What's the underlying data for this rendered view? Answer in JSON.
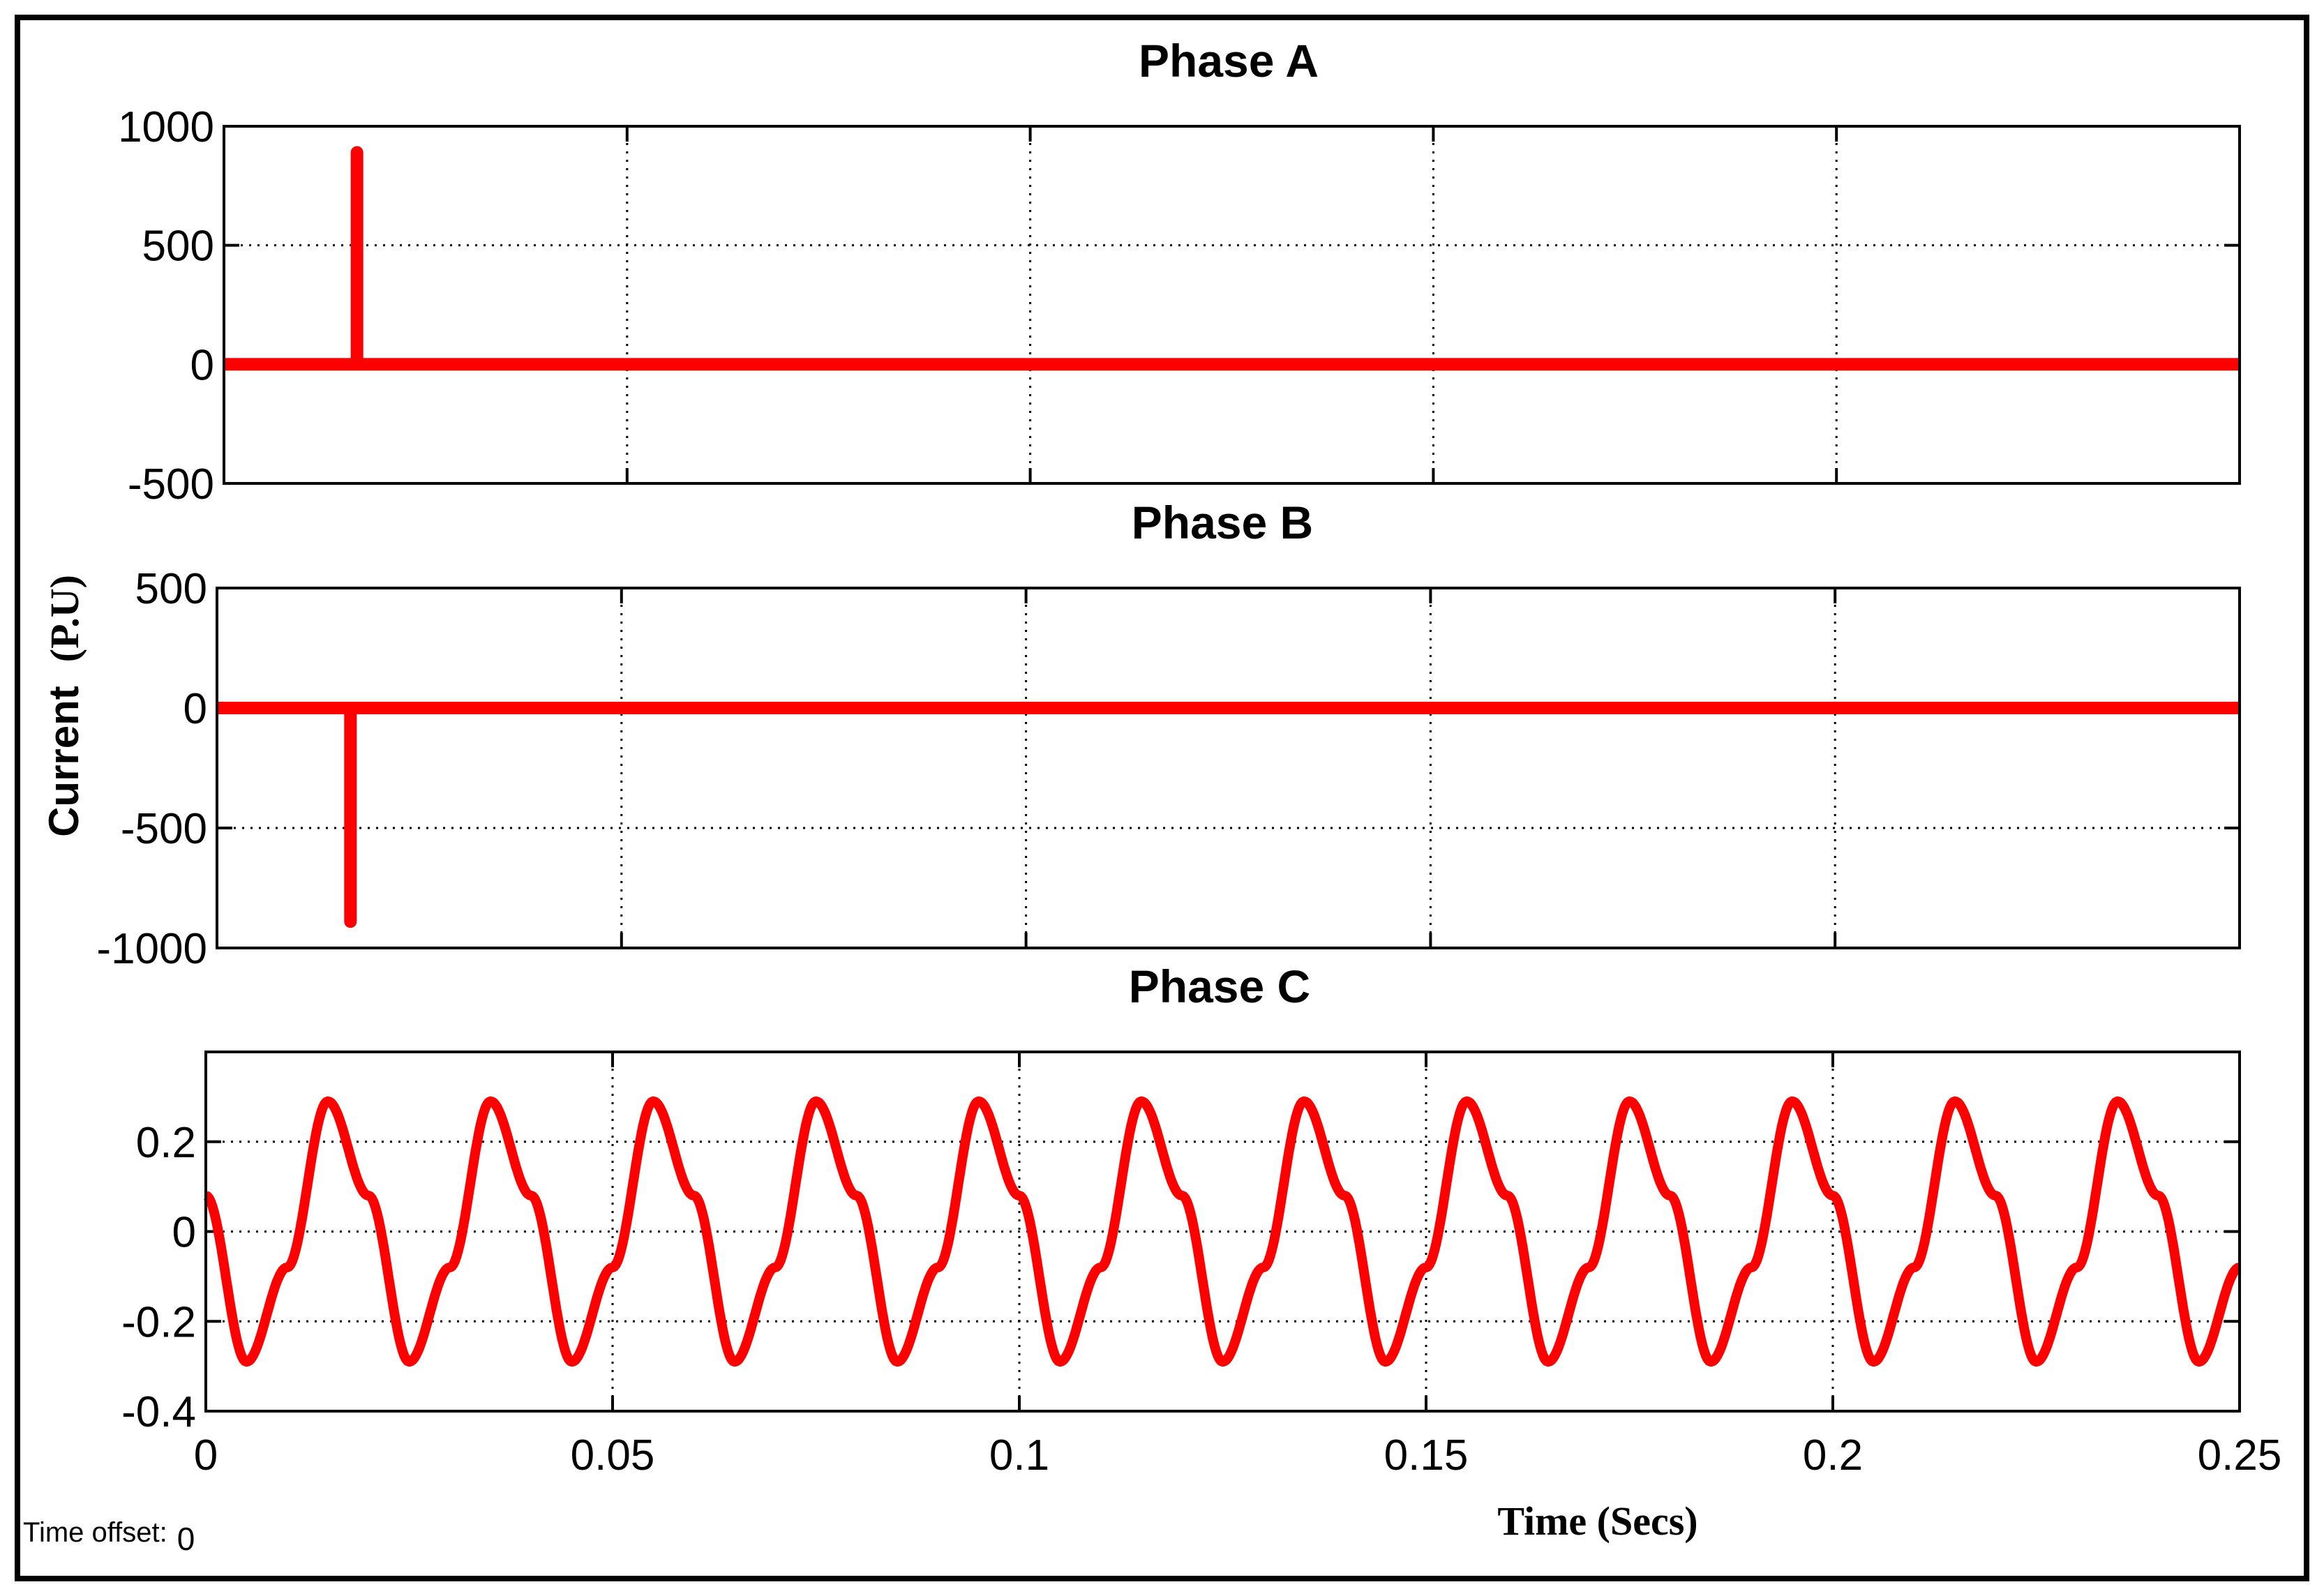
{
  "chart_data": [
    {
      "type": "line",
      "title": "Phase A",
      "ylim": [
        -500,
        1000
      ],
      "yticks": [
        -500,
        0,
        500,
        1000
      ],
      "ytick_labels": [
        "-500",
        "0",
        "500",
        "1000"
      ],
      "xlim": [
        0,
        0.25
      ],
      "xticks": [
        0,
        0.05,
        0.1,
        0.15,
        0.2,
        0.25
      ],
      "grid": true,
      "color": "#ff0000",
      "x": [
        0,
        0.0165,
        0.0165,
        0.0165,
        0.25
      ],
      "y": [
        0,
        0,
        890,
        0,
        0
      ]
    },
    {
      "type": "line",
      "title": "Phase B",
      "ylim": [
        -1000,
        500
      ],
      "yticks": [
        -1000,
        -500,
        0,
        500
      ],
      "ytick_labels": [
        "-1000",
        "-500",
        "0",
        "500"
      ],
      "xlim": [
        0,
        0.25
      ],
      "xticks": [
        0,
        0.05,
        0.1,
        0.15,
        0.2,
        0.25
      ],
      "grid": true,
      "color": "#ff0000",
      "x": [
        0,
        0.0165,
        0.0165,
        0.0165,
        0.25
      ],
      "y": [
        0,
        0,
        -890,
        0,
        0
      ]
    },
    {
      "type": "line",
      "title": "Phase C",
      "ylim": [
        -0.4,
        0.4
      ],
      "yticks": [
        -0.4,
        -0.2,
        0,
        0.2
      ],
      "ytick_labels": [
        "-0.4",
        "-0.2",
        "0",
        "0.2"
      ],
      "xlim": [
        0,
        0.25
      ],
      "xticks": [
        0,
        0.05,
        0.1,
        0.15,
        0.2,
        0.25
      ],
      "xtick_labels": [
        "0",
        "0.05",
        "0.1",
        "0.15",
        "0.2",
        "0.25"
      ],
      "grid": true,
      "color": "#ff0000",
      "x": [
        0,
        0.005,
        0.01,
        0.015,
        0.02,
        0.025,
        0.03,
        0.035,
        0.04,
        0.045,
        0.05,
        0.055,
        0.06,
        0.065,
        0.07,
        0.075,
        0.08,
        0.085,
        0.09,
        0.095,
        0.1,
        0.105,
        0.11,
        0.115,
        0.12,
        0.125,
        0.13,
        0.135,
        0.14,
        0.145,
        0.15,
        0.155,
        0.16,
        0.165,
        0.17,
        0.175,
        0.18,
        0.185,
        0.19,
        0.195,
        0.2,
        0.205,
        0.21,
        0.215,
        0.22,
        0.225,
        0.23,
        0.235,
        0.24,
        0.245,
        0.25
      ],
      "y": [
        0.08,
        -0.29,
        -0.08,
        0.29,
        0.08,
        -0.29,
        -0.08,
        0.29,
        0.08,
        -0.29,
        -0.08,
        0.29,
        0.08,
        -0.29,
        -0.08,
        0.29,
        0.08,
        -0.29,
        -0.08,
        0.29,
        0.08,
        -0.29,
        -0.08,
        0.29,
        0.08,
        -0.29,
        -0.08,
        0.29,
        0.08,
        -0.29,
        -0.08,
        0.29,
        0.08,
        -0.29,
        -0.08,
        0.29,
        0.08,
        -0.29,
        -0.08,
        0.29,
        0.08,
        -0.29,
        -0.08,
        0.29,
        0.08,
        -0.29,
        -0.08,
        0.29,
        0.08,
        -0.29,
        -0.08
      ]
    }
  ],
  "ylabel": "Current",
  "ylabel_unit": "(P.U)",
  "xlabel": "Time (Secs)",
  "time_offset_label": "Time offset:",
  "time_offset_value": "0",
  "colors": {
    "series": "#ff0000",
    "frame": "#000000"
  }
}
